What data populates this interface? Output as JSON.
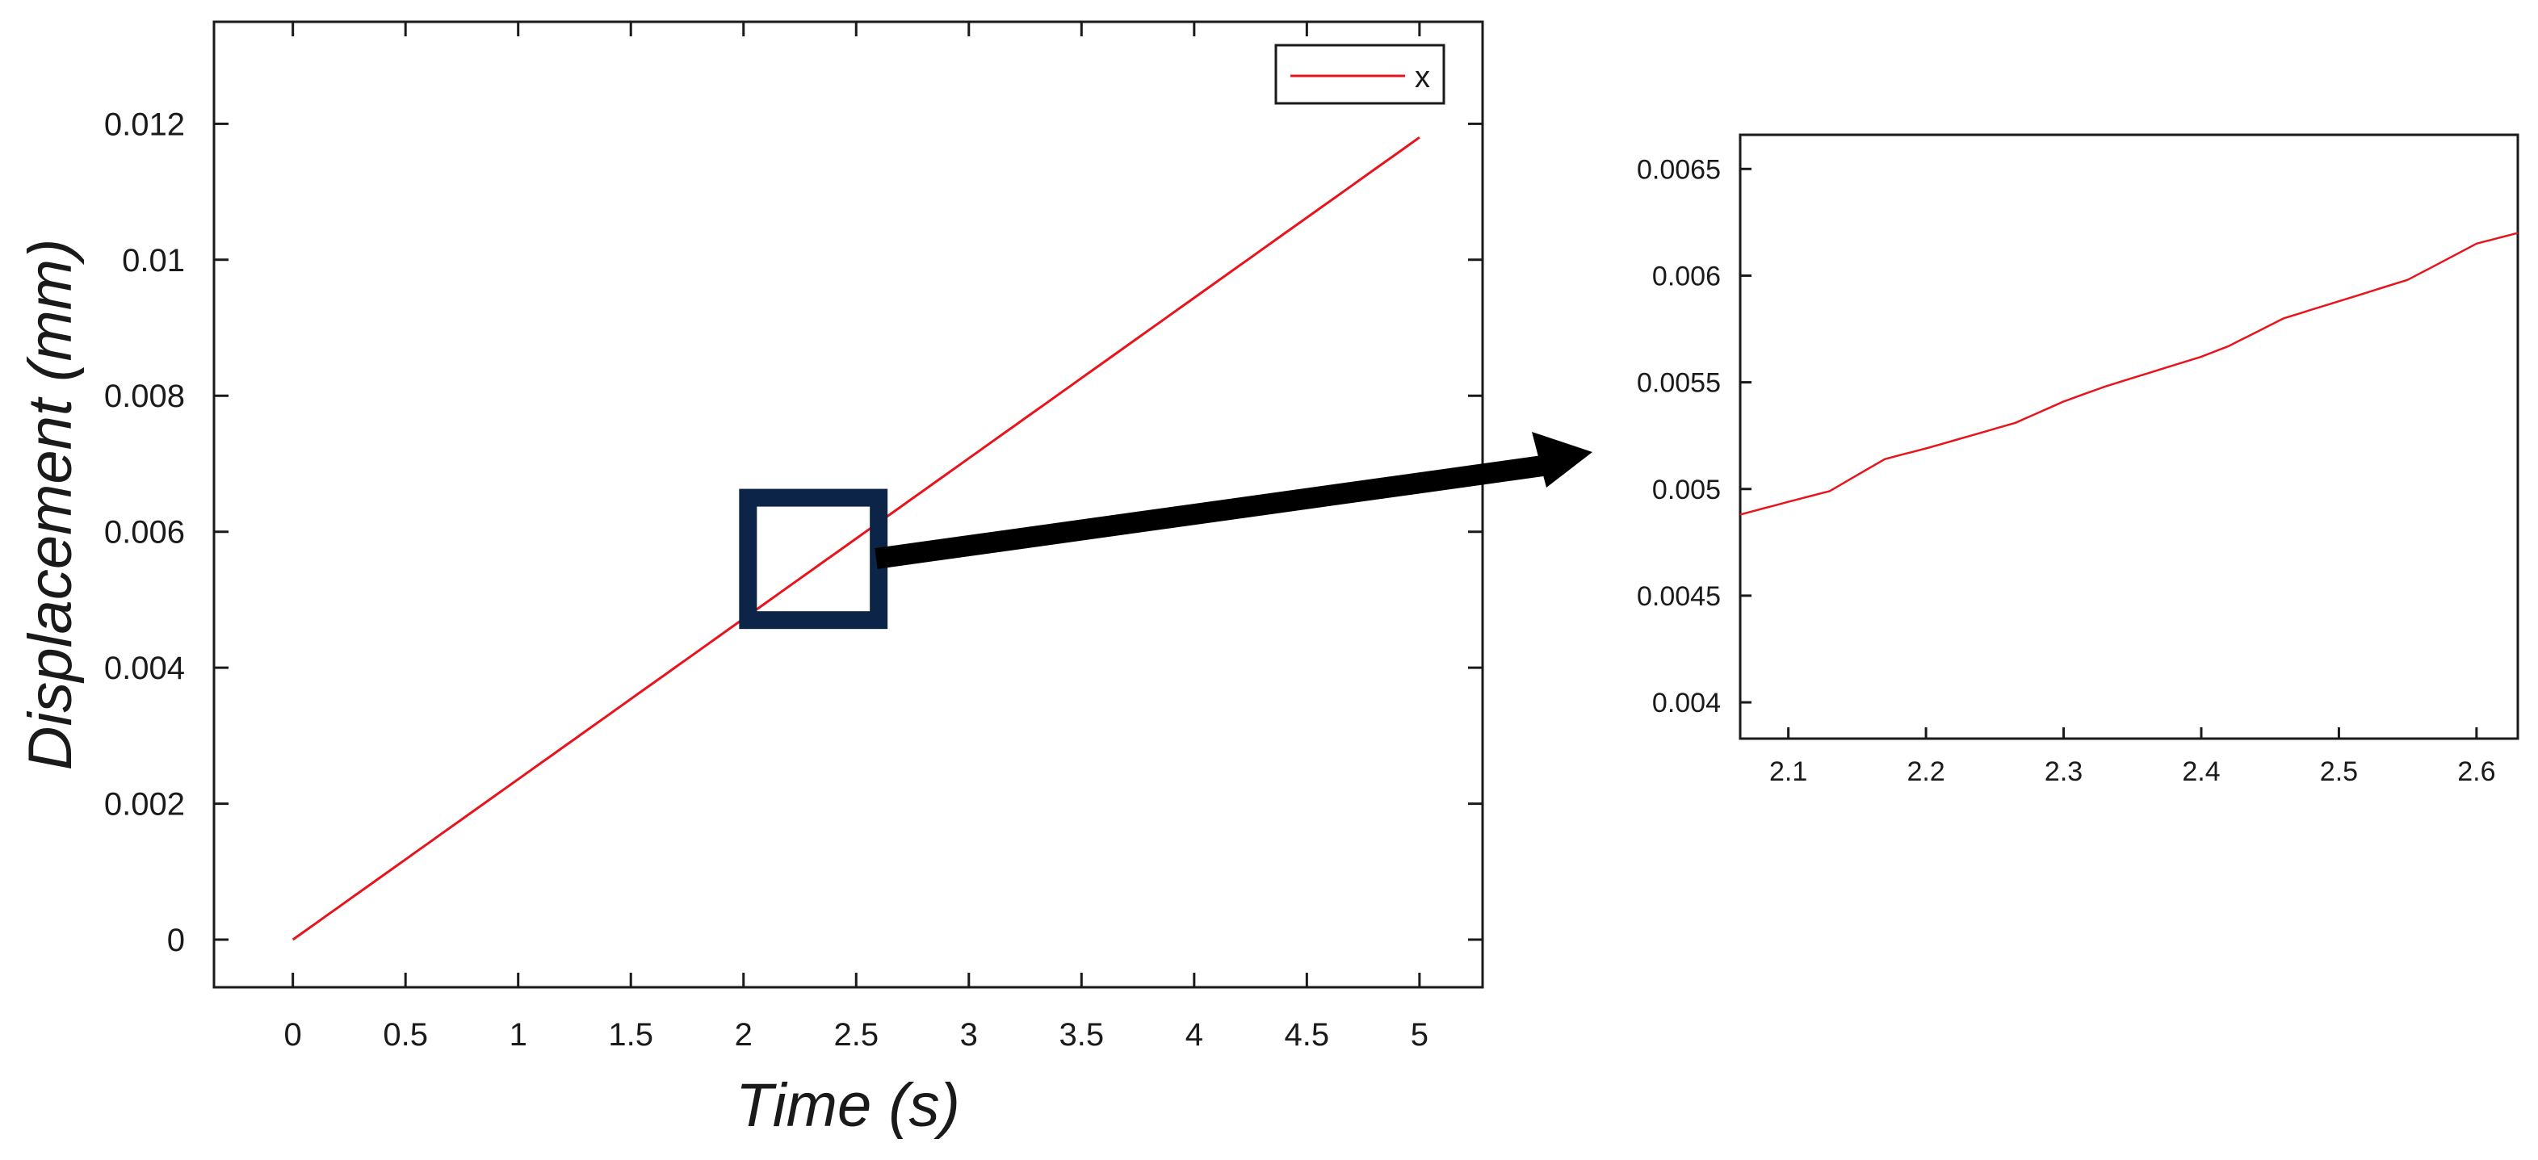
{
  "chart_data": [
    {
      "type": "line",
      "xlabel": "Time (s)",
      "ylabel": "Displacement (mm)",
      "xlim": [
        -0.35,
        5.28
      ],
      "ylim": [
        -0.0007,
        0.0135
      ],
      "xticks": [
        0,
        0.5,
        1,
        1.5,
        2,
        2.5,
        3,
        3.5,
        4,
        4.5,
        5
      ],
      "xtick_labels": [
        "0",
        "0.5",
        "1",
        "1.5",
        "2",
        "2.5",
        "3",
        "3.5",
        "4",
        "4.5",
        "5"
      ],
      "yticks": [
        0,
        0.002,
        0.004,
        0.006,
        0.008,
        0.01,
        0.012
      ],
      "ytick_labels": [
        "0",
        "0.002",
        "0.004",
        "0.006",
        "0.008",
        "0.01",
        "0.012"
      ],
      "grid": false,
      "legend_placement": "top-right",
      "series": [
        {
          "name": "x",
          "color": "#e8141c",
          "x": [
            0,
            0.5,
            1,
            1.5,
            2,
            2.5,
            3,
            3.5,
            4,
            4.5,
            5
          ],
          "y": [
            0,
            0.00118,
            0.00236,
            0.00354,
            0.00472,
            0.0059,
            0.00708,
            0.00826,
            0.00944,
            0.01062,
            0.0118
          ]
        }
      ],
      "zoom_box": {
        "x_range": [
          2.02,
          2.6
        ],
        "y_range": [
          0.0047,
          0.0065
        ],
        "color": "#0c2447"
      }
    },
    {
      "type": "line",
      "xlabel": "",
      "ylabel": "",
      "xlim": [
        2.065,
        2.63
      ],
      "ylim": [
        0.00383,
        0.00666
      ],
      "xticks": [
        2.1,
        2.2,
        2.3,
        2.4,
        2.5,
        2.6
      ],
      "xtick_labels": [
        "2.1",
        "2.2",
        "2.3",
        "2.4",
        "2.5",
        "2.6"
      ],
      "yticks": [
        0.004,
        0.0045,
        0.005,
        0.0055,
        0.006,
        0.0065
      ],
      "ytick_labels": [
        "0.004",
        "0.0045",
        "0.005",
        "0.0055",
        "0.006",
        "0.0065"
      ],
      "grid": false,
      "series": [
        {
          "color": "#e8141c",
          "x": [
            2.065,
            2.1,
            2.13,
            2.17,
            2.2,
            2.265,
            2.3,
            2.33,
            2.4,
            2.42,
            2.46,
            2.5,
            2.55,
            2.6,
            2.63
          ],
          "y": [
            0.00488,
            0.00494,
            0.00499,
            0.00514,
            0.00519,
            0.00531,
            0.00541,
            0.00548,
            0.00562,
            0.00567,
            0.0058,
            0.00588,
            0.00598,
            0.00615,
            0.0062
          ]
        }
      ]
    }
  ]
}
